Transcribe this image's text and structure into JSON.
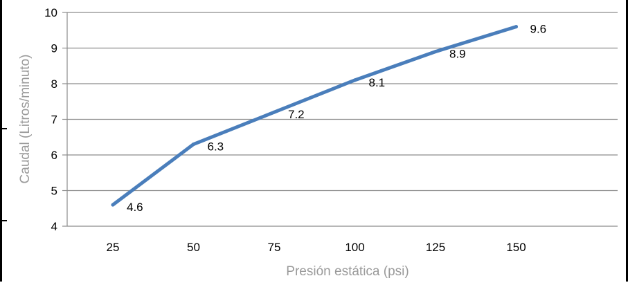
{
  "chart_data": {
    "type": "line",
    "x": [
      25,
      50,
      75,
      100,
      125,
      150
    ],
    "categories": [
      "25",
      "50",
      "75",
      "100",
      "125",
      "150"
    ],
    "series": [
      {
        "values": [
          4.6,
          6.3,
          7.2,
          8.1,
          8.9,
          9.6
        ],
        "data_labels": [
          "4.6",
          "6.3",
          "7.2",
          "8.1",
          "8.9",
          "9.6"
        ]
      }
    ],
    "xlabel": "Presión estática (psi)",
    "ylabel": "Caudal (Litros/minuto)",
    "ylim": [
      4,
      10
    ],
    "y_ticks": [
      "4",
      "5",
      "6",
      "7",
      "8",
      "9",
      "10"
    ],
    "grid": "horizontal",
    "line_color": "#4a7ebb",
    "grid_color": "#8c8c8c"
  }
}
